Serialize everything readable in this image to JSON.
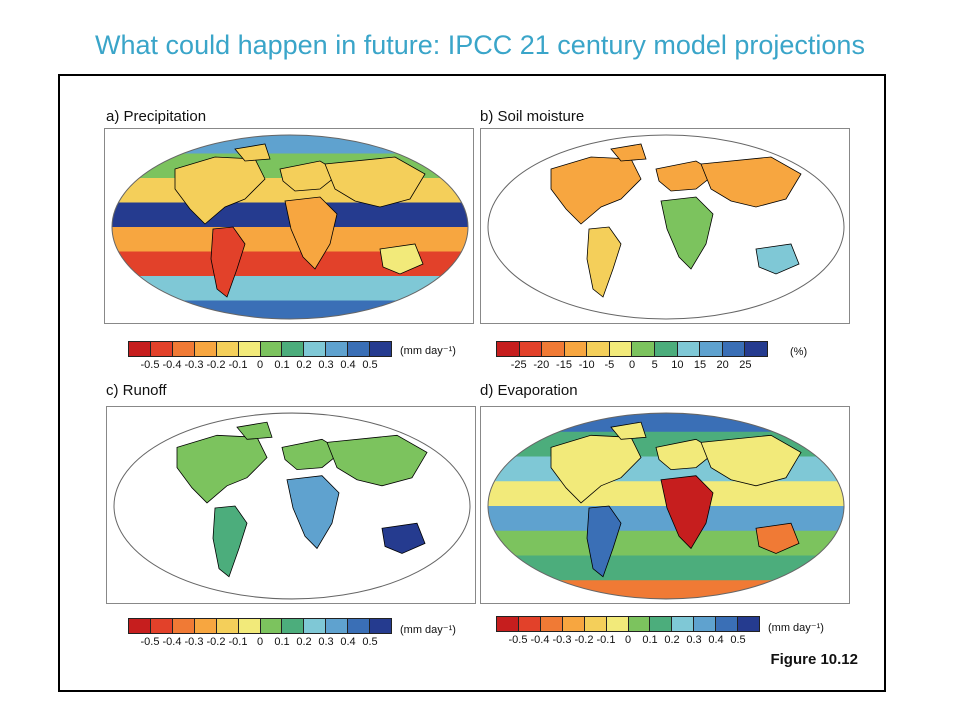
{
  "slide": {
    "title": "What could happen in future: IPCC 21 century model projections"
  },
  "figure": {
    "label": "Figure 10.12",
    "panels": [
      {
        "id": "a",
        "title": "a) Precipitation",
        "units": "(mm day⁻¹)",
        "ticks": [
          "-0.5",
          "-0.4",
          "-0.3",
          "-0.2",
          "-0.1",
          "0",
          "0.1",
          "0.2",
          "0.3",
          "0.4",
          "0.5"
        ],
        "ocean_filled": true
      },
      {
        "id": "b",
        "title": "b) Soil moisture",
        "units": "(%)",
        "ticks": [
          "-25",
          "-20",
          "-15",
          "-10",
          "-5",
          "0",
          "5",
          "10",
          "15",
          "20",
          "25"
        ],
        "ocean_filled": false
      },
      {
        "id": "c",
        "title": "c) Runoff",
        "units": "(mm day⁻¹)",
        "ticks": [
          "-0.5",
          "-0.4",
          "-0.3",
          "-0.2",
          "-0.1",
          "0",
          "0.1",
          "0.2",
          "0.3",
          "0.4",
          "0.5"
        ],
        "ocean_filled": false
      },
      {
        "id": "d",
        "title": "d) Evaporation",
        "units": "(mm day⁻¹)",
        "ticks": [
          "-0.5",
          "-0.4",
          "-0.3",
          "-0.2",
          "-0.1",
          "0",
          "0.1",
          "0.2",
          "0.3",
          "0.4",
          "0.5"
        ],
        "ocean_filled": true
      }
    ],
    "palette": [
      "#c61e1e",
      "#e2412a",
      "#f07a35",
      "#f7a640",
      "#f4cf5a",
      "#f2ea7a",
      "#7cc35e",
      "#4cad7c",
      "#7fc8d6",
      "#5fa2cf",
      "#3a6fb6",
      "#253b8f"
    ]
  },
  "colors": {
    "title": "#3aa5c9",
    "frame": "#000000"
  }
}
